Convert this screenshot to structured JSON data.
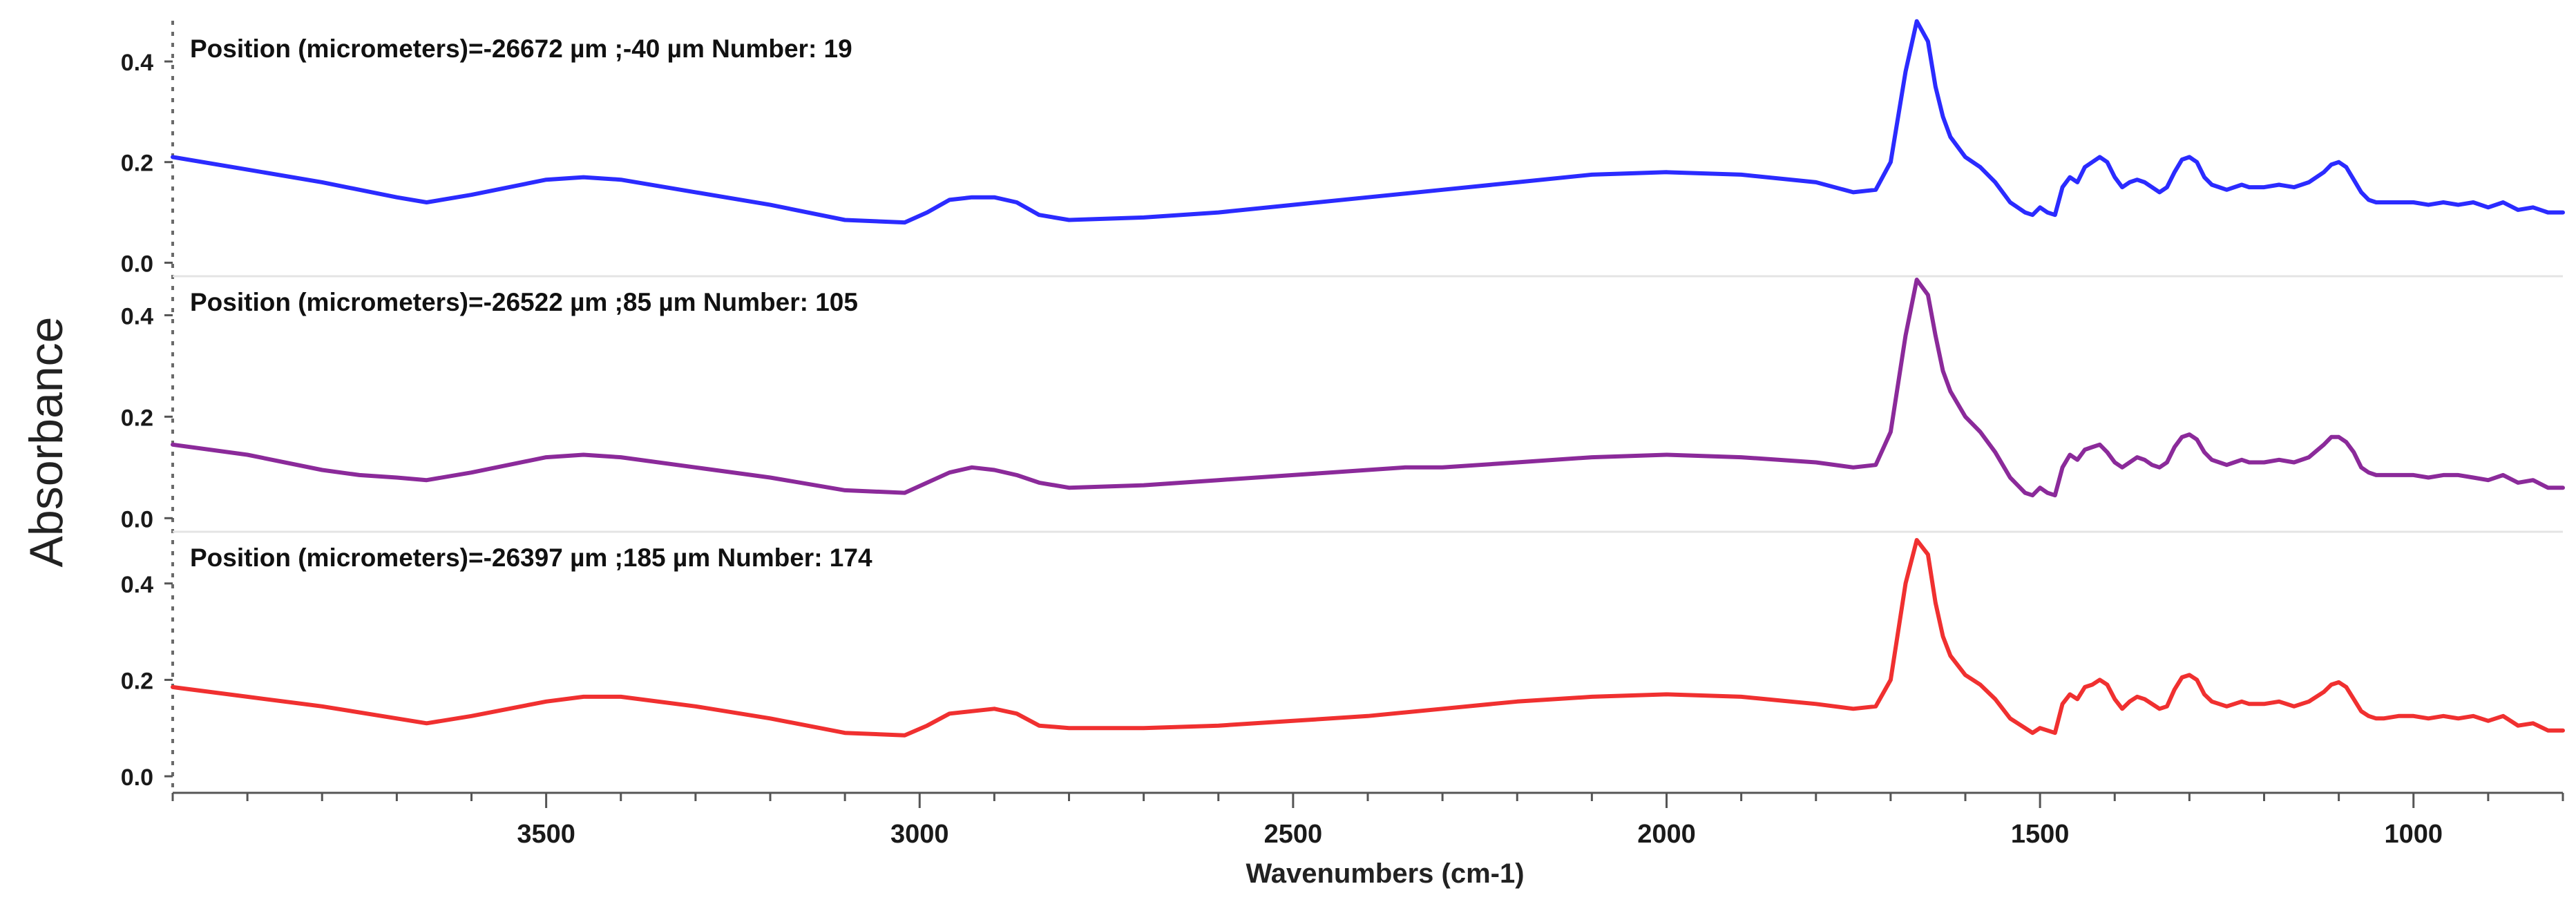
{
  "chart_data": {
    "type": "line",
    "ylabel": "Absorbance",
    "xlabel": "Wavenumbers (cm-1)",
    "xlim": [
      4000,
      800
    ],
    "x_reversed": true,
    "x_ticks": [
      3500,
      3000,
      2500,
      2000,
      1500,
      1000
    ],
    "y_ticks": [
      0.0,
      0.2,
      0.4
    ],
    "y_tick_labels": [
      "0.0",
      "0.2",
      "0.4"
    ],
    "panels": [
      {
        "title": "Position (micrometers)=-26672 µm ;-40 µm  Number: 19",
        "color": "#2b2bff",
        "ylim": [
          -0.02,
          0.47
        ],
        "x": [
          4000,
          3900,
          3800,
          3700,
          3660,
          3600,
          3500,
          3450,
          3400,
          3300,
          3200,
          3100,
          3020,
          2990,
          2960,
          2930,
          2900,
          2870,
          2840,
          2800,
          2700,
          2600,
          2500,
          2400,
          2300,
          2200,
          2100,
          2000,
          1900,
          1800,
          1750,
          1720,
          1700,
          1680,
          1665,
          1650,
          1640,
          1630,
          1620,
          1600,
          1580,
          1560,
          1540,
          1520,
          1510,
          1500,
          1490,
          1480,
          1470,
          1460,
          1450,
          1440,
          1430,
          1420,
          1410,
          1400,
          1390,
          1380,
          1370,
          1360,
          1350,
          1340,
          1330,
          1320,
          1310,
          1300,
          1290,
          1280,
          1270,
          1260,
          1250,
          1240,
          1230,
          1220,
          1200,
          1180,
          1160,
          1140,
          1120,
          1110,
          1100,
          1090,
          1080,
          1070,
          1060,
          1050,
          1040,
          1020,
          1000,
          980,
          960,
          940,
          920,
          900,
          880,
          860,
          840,
          820,
          800
        ],
        "y": [
          0.21,
          0.185,
          0.16,
          0.13,
          0.12,
          0.135,
          0.165,
          0.17,
          0.165,
          0.14,
          0.115,
          0.085,
          0.08,
          0.1,
          0.125,
          0.13,
          0.13,
          0.12,
          0.095,
          0.085,
          0.09,
          0.1,
          0.115,
          0.13,
          0.145,
          0.16,
          0.175,
          0.18,
          0.175,
          0.16,
          0.14,
          0.145,
          0.2,
          0.38,
          0.48,
          0.44,
          0.35,
          0.29,
          0.25,
          0.21,
          0.19,
          0.16,
          0.12,
          0.1,
          0.095,
          0.11,
          0.1,
          0.095,
          0.15,
          0.17,
          0.16,
          0.19,
          0.2,
          0.21,
          0.2,
          0.17,
          0.15,
          0.16,
          0.165,
          0.16,
          0.15,
          0.14,
          0.15,
          0.18,
          0.205,
          0.21,
          0.2,
          0.17,
          0.155,
          0.15,
          0.145,
          0.15,
          0.155,
          0.15,
          0.15,
          0.155,
          0.15,
          0.16,
          0.18,
          0.195,
          0.2,
          0.19,
          0.165,
          0.14,
          0.125,
          0.12,
          0.12,
          0.12,
          0.12,
          0.115,
          0.12,
          0.115,
          0.12,
          0.11,
          0.12,
          0.105,
          0.11,
          0.1,
          0.1
        ]
      },
      {
        "title": "Position (micrometers)=-26522 µm ;85 µm  Number: 105",
        "color": "#8b2a9a",
        "ylim": [
          -0.02,
          0.47
        ],
        "x": [
          4000,
          3900,
          3800,
          3750,
          3700,
          3660,
          3600,
          3500,
          3450,
          3400,
          3300,
          3200,
          3100,
          3020,
          2990,
          2960,
          2930,
          2900,
          2870,
          2840,
          2800,
          2700,
          2600,
          2500,
          2400,
          2350,
          2300,
          2200,
          2100,
          2000,
          1900,
          1800,
          1750,
          1720,
          1700,
          1680,
          1665,
          1650,
          1640,
          1630,
          1620,
          1600,
          1580,
          1560,
          1540,
          1520,
          1510,
          1500,
          1490,
          1480,
          1470,
          1460,
          1450,
          1440,
          1430,
          1420,
          1410,
          1400,
          1390,
          1380,
          1370,
          1360,
          1350,
          1340,
          1330,
          1320,
          1310,
          1300,
          1290,
          1280,
          1270,
          1260,
          1250,
          1240,
          1230,
          1220,
          1200,
          1180,
          1160,
          1140,
          1120,
          1110,
          1100,
          1090,
          1080,
          1070,
          1060,
          1050,
          1040,
          1020,
          1000,
          980,
          960,
          940,
          920,
          900,
          880,
          860,
          840,
          820,
          800
        ],
        "y": [
          0.145,
          0.125,
          0.095,
          0.085,
          0.08,
          0.075,
          0.09,
          0.12,
          0.125,
          0.12,
          0.1,
          0.08,
          0.055,
          0.05,
          0.07,
          0.09,
          0.1,
          0.095,
          0.085,
          0.07,
          0.06,
          0.065,
          0.075,
          0.085,
          0.095,
          0.1,
          0.1,
          0.11,
          0.12,
          0.125,
          0.12,
          0.11,
          0.1,
          0.105,
          0.17,
          0.36,
          0.47,
          0.44,
          0.36,
          0.29,
          0.25,
          0.2,
          0.17,
          0.13,
          0.08,
          0.05,
          0.045,
          0.06,
          0.05,
          0.045,
          0.1,
          0.125,
          0.115,
          0.135,
          0.14,
          0.145,
          0.13,
          0.11,
          0.1,
          0.11,
          0.12,
          0.115,
          0.105,
          0.1,
          0.11,
          0.14,
          0.16,
          0.165,
          0.155,
          0.13,
          0.115,
          0.11,
          0.105,
          0.11,
          0.115,
          0.11,
          0.11,
          0.115,
          0.11,
          0.12,
          0.145,
          0.16,
          0.16,
          0.15,
          0.13,
          0.1,
          0.09,
          0.085,
          0.085,
          0.085,
          0.085,
          0.08,
          0.085,
          0.085,
          0.08,
          0.075,
          0.085,
          0.07,
          0.075,
          0.06,
          0.06
        ]
      },
      {
        "title": "Position (micrometers)=-26397 µm ;185 µm  Number: 174",
        "color": "#f03030",
        "ylim": [
          -0.02,
          0.5
        ],
        "x": [
          4000,
          3900,
          3800,
          3700,
          3660,
          3600,
          3500,
          3450,
          3400,
          3300,
          3200,
          3100,
          3020,
          2990,
          2960,
          2930,
          2900,
          2870,
          2840,
          2800,
          2700,
          2600,
          2500,
          2400,
          2300,
          2200,
          2100,
          2000,
          1900,
          1800,
          1750,
          1720,
          1700,
          1680,
          1665,
          1650,
          1640,
          1630,
          1620,
          1600,
          1580,
          1560,
          1540,
          1520,
          1510,
          1500,
          1490,
          1480,
          1470,
          1460,
          1450,
          1440,
          1430,
          1420,
          1410,
          1400,
          1390,
          1380,
          1370,
          1360,
          1350,
          1340,
          1330,
          1320,
          1310,
          1300,
          1290,
          1280,
          1270,
          1260,
          1250,
          1240,
          1230,
          1220,
          1200,
          1180,
          1160,
          1140,
          1120,
          1110,
          1100,
          1090,
          1080,
          1070,
          1060,
          1050,
          1040,
          1020,
          1000,
          980,
          960,
          940,
          920,
          900,
          880,
          860,
          840,
          820,
          800
        ],
        "y": [
          0.185,
          0.165,
          0.145,
          0.12,
          0.11,
          0.125,
          0.155,
          0.165,
          0.165,
          0.145,
          0.12,
          0.09,
          0.085,
          0.105,
          0.13,
          0.135,
          0.14,
          0.13,
          0.105,
          0.1,
          0.1,
          0.105,
          0.115,
          0.125,
          0.14,
          0.155,
          0.165,
          0.17,
          0.165,
          0.15,
          0.14,
          0.145,
          0.2,
          0.4,
          0.49,
          0.46,
          0.36,
          0.29,
          0.25,
          0.21,
          0.19,
          0.16,
          0.12,
          0.1,
          0.09,
          0.1,
          0.095,
          0.09,
          0.15,
          0.17,
          0.16,
          0.185,
          0.19,
          0.2,
          0.19,
          0.16,
          0.14,
          0.155,
          0.165,
          0.16,
          0.15,
          0.14,
          0.145,
          0.18,
          0.205,
          0.21,
          0.2,
          0.17,
          0.155,
          0.15,
          0.145,
          0.15,
          0.155,
          0.15,
          0.15,
          0.155,
          0.145,
          0.155,
          0.175,
          0.19,
          0.195,
          0.185,
          0.16,
          0.135,
          0.125,
          0.12,
          0.12,
          0.125,
          0.125,
          0.12,
          0.125,
          0.12,
          0.125,
          0.115,
          0.125,
          0.105,
          0.11,
          0.095,
          0.095
        ]
      }
    ]
  }
}
